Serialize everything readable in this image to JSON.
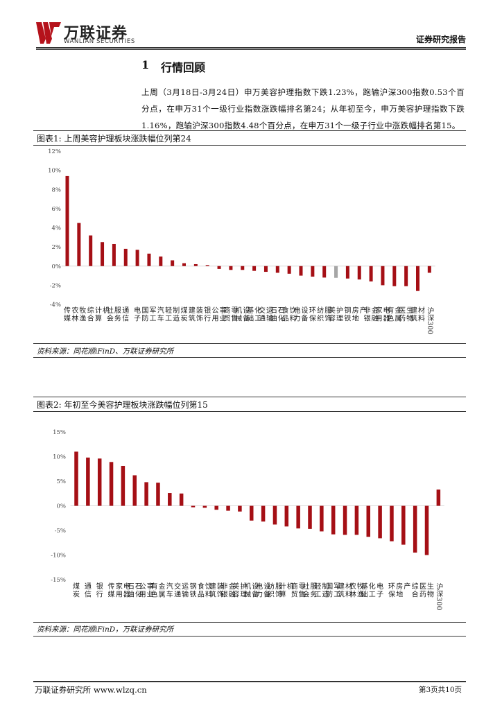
{
  "header": {
    "logo_cn": "万联证券",
    "logo_en": "WANLIAN SECURITIES",
    "doc_type": "证券研究报告"
  },
  "section": {
    "number": "1",
    "title": "行情回顾",
    "paragraph": "上周（3月18日-3月24日）申万美容护理指数下跌1.23%，跑输沪深300指数0.53个百分点，在申万31个一级行业指数涨跌幅排名第24；从年初至今，申万美容护理指数下跌1.16%，跑输沪深300指数4.48个百分点，在申万31个一级子行业中涨跌幅排名第15。"
  },
  "figure1": {
    "title": "图表1:  上周美容护理板块涨跌幅位列第24",
    "source": "资料来源：同花顺iFinD、万联证券研究所"
  },
  "figure2": {
    "title": "图表2:  年初至今美容护理板块涨跌幅位列第15",
    "source": "资料来源：同花顺iFinD，万联证券研究所"
  },
  "footer": {
    "left": "万联证券研究所  www.wlzq.cn",
    "right": "第3页共10页"
  },
  "colors": {
    "bar": "#A50F15",
    "highlight": "#A6A6A6",
    "axis": "#D9D9D9"
  },
  "chart_data": [
    {
      "type": "bar",
      "title": "图表1:  上周美容护理板块涨跌幅位列第24",
      "ylim": [
        -4,
        12
      ],
      "yticks": [
        -4,
        -2,
        0,
        2,
        4,
        6,
        8,
        10,
        12
      ],
      "ytick_labels": [
        "-4%",
        "-2%",
        "0%",
        "2%",
        "4%",
        "6%",
        "8%",
        "10%",
        "12%"
      ],
      "highlight": "美容护理",
      "categories": [
        "传媒",
        "农林牧渔",
        "综合",
        "计算机",
        "社会服务",
        "通信",
        "电子",
        "国防军工",
        "汽车",
        "轻工制造",
        "煤炭",
        "建筑装饰",
        "银行",
        "公用事业",
        "商贸零售",
        "机械设备",
        "基础化工",
        "交通运输",
        "石油石化",
        "食品饮料",
        "电力设备",
        "环保",
        "纺织服饰",
        "美容护理",
        "钢铁",
        "房地产",
        "非银金融",
        "家用电器",
        "有色金属",
        "医药生物",
        "建筑材料",
        "沪深300"
      ],
      "values": [
        9.4,
        4.5,
        3.2,
        2.5,
        2.3,
        1.8,
        1.7,
        1.3,
        1.0,
        0.6,
        0.3,
        0.2,
        0.1,
        -0.3,
        -0.4,
        -0.4,
        -0.5,
        -0.6,
        -0.7,
        -0.8,
        -1.0,
        -1.1,
        -1.2,
        -1.23,
        -1.3,
        -1.4,
        -1.6,
        -2.0,
        -2.1,
        -2.1,
        -2.6,
        -0.7
      ]
    },
    {
      "type": "bar",
      "title": "图表2:  年初至今美容护理板块涨跌幅位列第15",
      "ylim": [
        -15,
        15
      ],
      "yticks": [
        -15,
        -10,
        -5,
        0,
        5,
        10,
        15
      ],
      "ytick_labels": [
        "-15%",
        "-10%",
        "-5%",
        "0%",
        "5%",
        "10%",
        "15%"
      ],
      "categories": [
        "煤炭",
        "通信",
        "银行",
        "传媒",
        "家用电器",
        "石油石化",
        "公用事业",
        "有色金属",
        "汽车",
        "交通运输",
        "钢铁",
        "食品饮料",
        "建筑装饰",
        "非银金融",
        "美容护理",
        "机械设备",
        "电力设备",
        "纺织服饰",
        "计算机",
        "商贸零售",
        "社会服务",
        "轻工制造",
        "国防军工",
        "建筑材料",
        "农林牧渔",
        "基础化工",
        "电子",
        "环保",
        "房地产",
        "综合",
        "医药生物",
        "沪深300"
      ],
      "values": [
        11.0,
        9.8,
        9.6,
        8.9,
        8.1,
        6.2,
        4.8,
        4.7,
        2.6,
        2.5,
        -0.3,
        -0.4,
        -0.8,
        -1.0,
        -1.16,
        -3.0,
        -3.2,
        -3.8,
        -4.2,
        -4.6,
        -4.7,
        -5.2,
        -5.8,
        -5.9,
        -5.9,
        -6.3,
        -6.6,
        -7.2,
        -7.9,
        -9.5,
        -10.0,
        3.3
      ]
    }
  ]
}
